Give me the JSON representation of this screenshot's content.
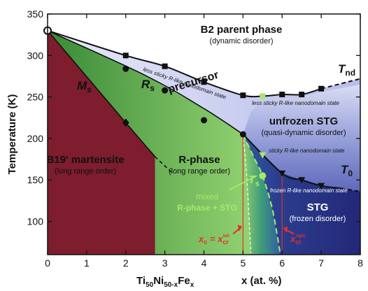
{
  "chart_data": {
    "type": "phase-diagram",
    "x_axis": {
      "label_sub": {
        "ti": "Ti",
        "ti_sub": "50",
        "ni": "Ni",
        "ni_sub": "50-x",
        "fe": "Fe",
        "fe_sub": "x"
      },
      "label": "x (at. %)",
      "range": [
        0,
        8
      ],
      "ticks": [
        0,
        1,
        2,
        3,
        4,
        5,
        6,
        7,
        8
      ]
    },
    "y_axis": {
      "label": "Temperature (K)",
      "range": [
        60,
        350
      ],
      "ticks": [
        100,
        150,
        200,
        250,
        300,
        350
      ]
    },
    "colors": {
      "martensite": "#7d1d2e",
      "r_phase_dark": "#3d8f3a",
      "r_phase_light": "#8fd06f",
      "stg_dark": "#262b7a",
      "unfrozen_stg": "#7e8ad0",
      "precursor": "#c9cdf0",
      "b2": "#ffffff",
      "lime": "#a8e86a",
      "red": "#e0312e"
    },
    "curves": {
      "Tnd": [
        [
          0,
          330
        ],
        [
          2,
          300
        ],
        [
          3,
          287
        ],
        [
          4,
          268
        ],
        [
          5,
          252
        ],
        [
          5.5,
          251
        ],
        [
          6,
          253
        ],
        [
          6.5,
          253
        ],
        [
          7,
          260
        ]
      ],
      "Tnd_dashed": [
        [
          7,
          260
        ],
        [
          8,
          272
        ]
      ],
      "Rs": [
        [
          0,
          330
        ],
        [
          2,
          284
        ],
        [
          3,
          258
        ],
        [
          4,
          222
        ],
        [
          5,
          205
        ]
      ],
      "Rs_line": [
        [
          0,
          330
        ],
        [
          2.5,
          276
        ],
        [
          4,
          236
        ],
        [
          5,
          205
        ]
      ],
      "Ms": [
        [
          0,
          330
        ],
        [
          2,
          219
        ],
        [
          2.75,
          178
        ]
      ],
      "Ms_dashed": [
        [
          2.75,
          178
        ],
        [
          3.2,
          158
        ]
      ],
      "T0": [
        [
          5,
          205
        ],
        [
          6,
          158
        ],
        [
          6.5,
          150
        ],
        [
          7,
          143
        ],
        [
          7.5,
          140
        ]
      ],
      "T0_dashed": [
        [
          7.5,
          140
        ],
        [
          8,
          136
        ]
      ],
      "Ts": [
        [
          5,
          205
        ],
        [
          5.3,
          175
        ],
        [
          5.5,
          155
        ],
        [
          5.75,
          115
        ],
        [
          5.95,
          62
        ]
      ],
      "Ts_left": [
        [
          5,
          205
        ],
        [
          5.1,
          150
        ],
        [
          5.2,
          62
        ]
      ]
    },
    "markers": {
      "tnd_squares": [
        [
          2,
          300
        ],
        [
          3,
          287
        ],
        [
          4,
          268
        ],
        [
          5,
          252
        ],
        [
          6,
          253
        ],
        [
          6.5,
          253
        ],
        [
          7,
          260
        ]
      ],
      "tnd_lime_square": [
        5.5,
        251
      ],
      "rs_circles": [
        [
          2,
          284
        ],
        [
          3,
          258
        ],
        [
          4,
          222
        ],
        [
          5,
          205
        ]
      ],
      "rs_open_circle": [
        0,
        330
      ],
      "ms_diamond": [
        2,
        219
      ],
      "t0_triangles": [
        [
          6,
          158
        ],
        [
          6.5,
          150
        ],
        [
          7,
          143
        ]
      ],
      "ts_lime_triangle": [
        5.5,
        180
      ],
      "ts_lime_circle": [
        5.5,
        155
      ]
    },
    "labels": {
      "b2": "B2 parent phase",
      "b2_sub": "(dynamic disorder)",
      "tnd": "T",
      "tnd_sub": "nd",
      "precursor": "precursor",
      "less_sticky_1": "less sticky R-like nanodomain state",
      "less_sticky_2": "less sticky R-like nanodomain state",
      "unfrozen": "unfrozen STG",
      "unfrozen_sub": "(quasi-dynamic disorder)",
      "sticky": "sticky R-like nanodomain state",
      "frozen_nano": "frozen R-like nanodomain state",
      "t0": "T",
      "t0_sub": "0",
      "ms": "M",
      "ms_sub": "s",
      "rs": "R",
      "rs_sub": "s",
      "ts": "T",
      "ts_sub": "s",
      "b19": "B19' martensite",
      "b19_sub": "(long range order)",
      "rphase": "R-phase",
      "rphase_sub": "(long range order)",
      "mixed": "mixed",
      "mixed_sub": "R-phase + STG",
      "stg": "STG",
      "stg_sub": "(frozen disorder)",
      "xc": "x",
      "xc_sub": "c",
      "xc_eq": " = x",
      "xcr_sub": "cr",
      "xcr_sup": "left",
      "xright": "x",
      "xright_sub": "cr",
      "xright_sup": "right"
    }
  }
}
